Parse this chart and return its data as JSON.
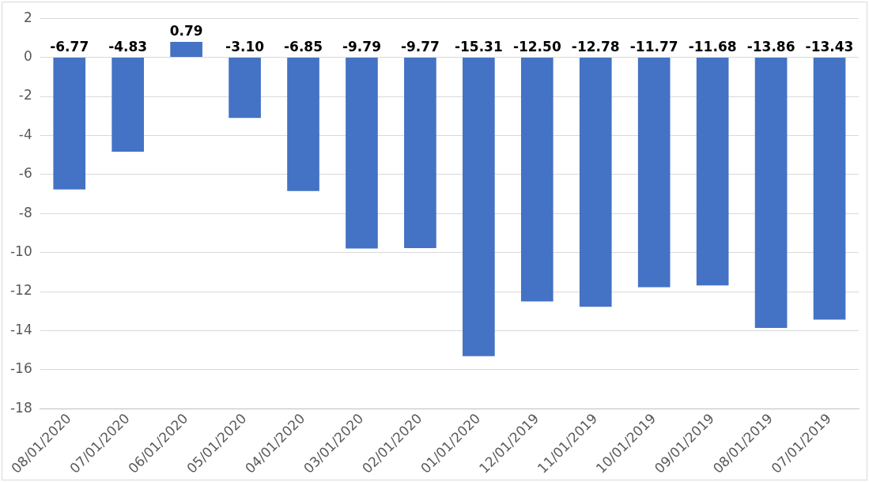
{
  "chart_data": {
    "type": "bar",
    "categories": [
      "08/01/2020",
      "07/01/2020",
      "06/01/2020",
      "05/01/2020",
      "04/01/2020",
      "03/01/2020",
      "02/01/2020",
      "01/01/2020",
      "12/01/2019",
      "11/01/2019",
      "10/01/2019",
      "09/01/2019",
      "08/01/2019",
      "07/01/2019"
    ],
    "values": [
      -6.77,
      -4.83,
      0.79,
      -3.1,
      -6.85,
      -9.79,
      -9.77,
      -15.31,
      -12.5,
      -12.78,
      -11.77,
      -11.68,
      -13.86,
      -13.43
    ],
    "value_labels": [
      "-6.77",
      "-4.83",
      "0.79",
      "-3.10",
      "-6.85",
      "-9.79",
      "-9.77",
      "-15.31",
      "-12.50",
      "-12.78",
      "-11.77",
      "-11.68",
      "-13.86",
      "-13.43"
    ],
    "color": "#4472c4",
    "ylim": [
      -18,
      2
    ],
    "yticks": [
      -18,
      -16,
      -14,
      -12,
      -10,
      -8,
      -6,
      -4,
      -2,
      0,
      2
    ],
    "grid": "y",
    "legend": false
  }
}
